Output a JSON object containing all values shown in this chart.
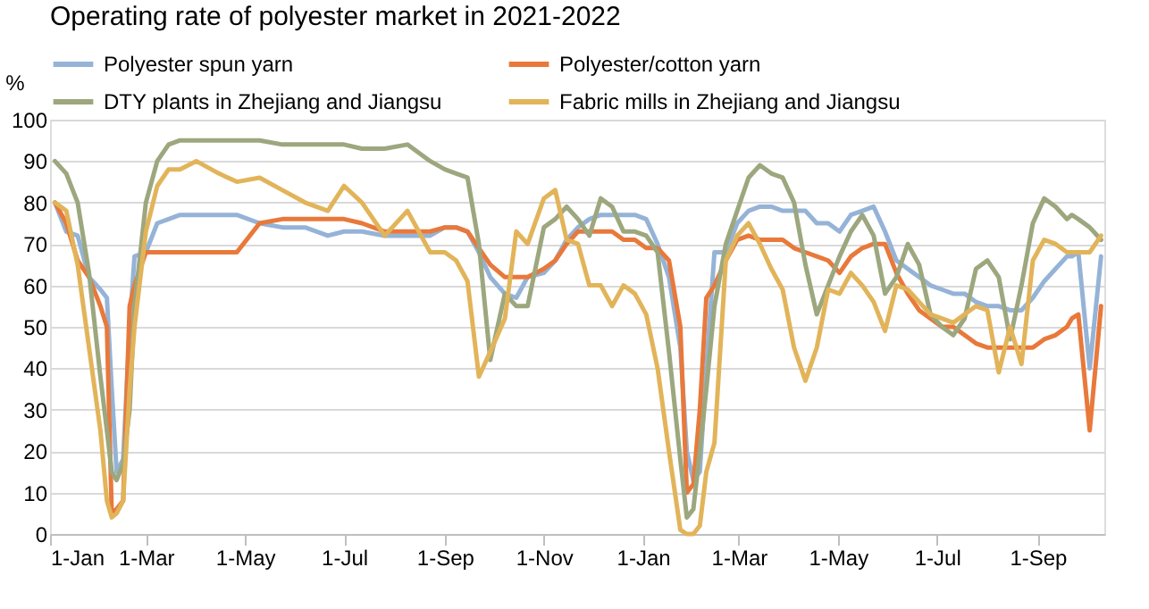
{
  "chart_data": {
    "type": "line",
    "title": "Operating rate of polyester market in 2021-2022",
    "ylabel": "%",
    "x": [
      "2021-01-04",
      "2021-01-11",
      "2021-01-18",
      "2021-01-25",
      "2021-02-01",
      "2021-02-05",
      "2021-02-08",
      "2021-02-11",
      "2021-02-15",
      "2021-02-19",
      "2021-02-22",
      "2021-03-01",
      "2021-03-08",
      "2021-03-15",
      "2021-03-22",
      "2021-04-01",
      "2021-04-15",
      "2021-04-26",
      "2021-05-10",
      "2021-05-24",
      "2021-06-07",
      "2021-06-21",
      "2021-07-01",
      "2021-07-12",
      "2021-07-26",
      "2021-08-09",
      "2021-08-23",
      "2021-09-01",
      "2021-09-08",
      "2021-09-15",
      "2021-09-22",
      "2021-09-29",
      "2021-10-08",
      "2021-10-15",
      "2021-10-22",
      "2021-11-01",
      "2021-11-08",
      "2021-11-15",
      "2021-11-22",
      "2021-11-29",
      "2021-12-06",
      "2021-12-13",
      "2021-12-20",
      "2021-12-27",
      "2022-01-03",
      "2022-01-10",
      "2022-01-17",
      "2022-01-24",
      "2022-01-28",
      "2022-02-01",
      "2022-02-05",
      "2022-02-09",
      "2022-02-14",
      "2022-02-21",
      "2022-02-28",
      "2022-03-07",
      "2022-03-14",
      "2022-03-21",
      "2022-03-28",
      "2022-04-04",
      "2022-04-11",
      "2022-04-18",
      "2022-04-25",
      "2022-05-02",
      "2022-05-09",
      "2022-05-16",
      "2022-05-23",
      "2022-05-30",
      "2022-06-06",
      "2022-06-13",
      "2022-06-20",
      "2022-06-27",
      "2022-07-04",
      "2022-07-11",
      "2022-07-18",
      "2022-07-25",
      "2022-08-01",
      "2022-08-08",
      "2022-08-15",
      "2022-08-22",
      "2022-08-29",
      "2022-09-05",
      "2022-09-12",
      "2022-09-19",
      "2022-09-22",
      "2022-09-26",
      "2022-10-03",
      "2022-10-10"
    ],
    "series": [
      {
        "name": "Polyester spun yarn",
        "color": "#95b3d7",
        "values": [
          80,
          73,
          72,
          62,
          59,
          57,
          35,
          15,
          18,
          50,
          67,
          68,
          75,
          76,
          77,
          77,
          77,
          77,
          75,
          74,
          74,
          72,
          73,
          73,
          72,
          72,
          72,
          74,
          74,
          73,
          68,
          62,
          58,
          57,
          62,
          63,
          66,
          71,
          74,
          76,
          77,
          77,
          77,
          77,
          76,
          70,
          62,
          45,
          20,
          13,
          15,
          40,
          68,
          68,
          75,
          78,
          79,
          79,
          78,
          78,
          78,
          75,
          75,
          73,
          77,
          78,
          79,
          73,
          66,
          64,
          62,
          60,
          59,
          58,
          58,
          56,
          55,
          55,
          54,
          54,
          57,
          61,
          64,
          67,
          67,
          68,
          40,
          67
        ]
      },
      {
        "name": "Polyester/cotton yarn",
        "color": "#e8793b",
        "values": [
          80,
          75,
          66,
          62,
          55,
          50,
          5,
          6,
          8,
          55,
          60,
          68,
          68,
          68,
          68,
          68,
          68,
          68,
          75,
          76,
          76,
          76,
          76,
          75,
          73,
          73,
          73,
          74,
          74,
          73,
          69,
          65,
          62,
          62,
          62,
          64,
          66,
          70,
          73,
          73,
          73,
          73,
          71,
          71,
          69,
          69,
          66,
          50,
          10,
          12,
          30,
          57,
          60,
          66,
          71,
          72,
          71,
          71,
          71,
          69,
          68,
          67,
          66,
          63,
          67,
          69,
          70,
          70,
          63,
          58,
          54,
          52,
          50,
          50,
          48,
          46,
          45,
          45,
          45,
          45,
          45,
          47,
          48,
          50,
          52,
          53,
          25,
          55
        ]
      },
      {
        "name": "DTY plants in Zhejiang and Jiangsu",
        "color": "#9ca77e",
        "values": [
          90,
          87,
          80,
          63,
          38,
          25,
          15,
          13,
          17,
          30,
          55,
          80,
          90,
          94,
          95,
          95,
          95,
          95,
          95,
          94,
          94,
          94,
          94,
          93,
          93,
          94,
          90,
          88,
          87,
          86,
          70,
          42,
          58,
          55,
          55,
          74,
          76,
          79,
          76,
          72,
          81,
          79,
          73,
          73,
          72,
          68,
          44,
          18,
          4,
          6,
          20,
          35,
          55,
          70,
          78,
          86,
          89,
          87,
          86,
          80,
          65,
          53,
          60,
          67,
          73,
          77,
          72,
          58,
          62,
          70,
          65,
          53,
          50,
          48,
          52,
          64,
          66,
          62,
          47,
          60,
          75,
          81,
          79,
          76,
          77,
          76,
          74,
          71
        ]
      },
      {
        "name": "Fabric mills in Zhejiang and Jiangsu",
        "color": "#e2b45a",
        "values": [
          80,
          78,
          65,
          45,
          25,
          8,
          4,
          5,
          8,
          35,
          50,
          73,
          84,
          88,
          88,
          90,
          87,
          85,
          86,
          83,
          80,
          78,
          84,
          80,
          72,
          78,
          68,
          68,
          66,
          61,
          38,
          44,
          52,
          73,
          70,
          81,
          83,
          71,
          70,
          60,
          60,
          55,
          60,
          58,
          53,
          40,
          20,
          1,
          0,
          0,
          2,
          15,
          22,
          66,
          72,
          75,
          70,
          64,
          59,
          45,
          37,
          45,
          59,
          58,
          63,
          60,
          56,
          49,
          60,
          59,
          56,
          53,
          52,
          51,
          53,
          55,
          54,
          39,
          50,
          41,
          66,
          71,
          70,
          68,
          68,
          68,
          68,
          72
        ]
      }
    ],
    "xlim": [
      "2021-01-01",
      "2022-10-12"
    ],
    "xticks": [
      {
        "value": "2021-01-01",
        "label": "1-Jan"
      },
      {
        "value": "2021-03-01",
        "label": "1-Mar"
      },
      {
        "value": "2021-05-01",
        "label": "1-May"
      },
      {
        "value": "2021-07-01",
        "label": "1-Jul"
      },
      {
        "value": "2021-09-01",
        "label": "1-Sep"
      },
      {
        "value": "2021-11-01",
        "label": "1-Nov"
      },
      {
        "value": "2022-01-01",
        "label": "1-Jan"
      },
      {
        "value": "2022-03-01",
        "label": "1-Mar"
      },
      {
        "value": "2022-05-01",
        "label": "1-May"
      },
      {
        "value": "2022-07-01",
        "label": "1-Jul"
      },
      {
        "value": "2022-09-01",
        "label": "1-Sep"
      }
    ],
    "ylim": [
      0,
      100
    ],
    "yticks": [
      0,
      10,
      20,
      30,
      40,
      50,
      60,
      70,
      80,
      90,
      100
    ],
    "grid": "y",
    "legend": "top"
  }
}
